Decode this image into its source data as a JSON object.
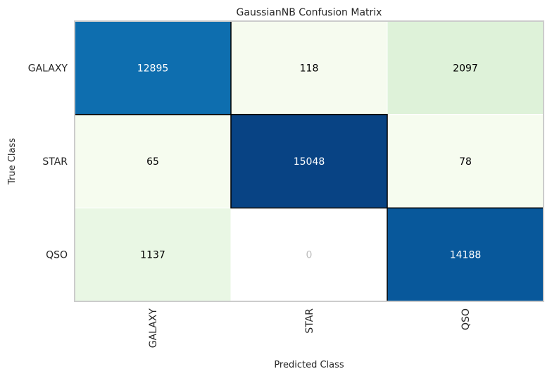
{
  "chart_data": {
    "type": "heatmap",
    "title": "GaussianNB Confusion Matrix",
    "xlabel": "Predicted Class",
    "ylabel": "True Class",
    "x_categories": [
      "GALAXY",
      "STAR",
      "QSO"
    ],
    "y_categories": [
      "GALAXY",
      "STAR",
      "QSO"
    ],
    "values": [
      [
        12895,
        118,
        2097
      ],
      [
        65,
        15048,
        78
      ],
      [
        1137,
        0,
        14188
      ]
    ],
    "colormap": "GnBu",
    "zero_label_color": "#bdbdbd",
    "diagonal_outline_color": "#000000",
    "frame_color": "#cccccc"
  }
}
